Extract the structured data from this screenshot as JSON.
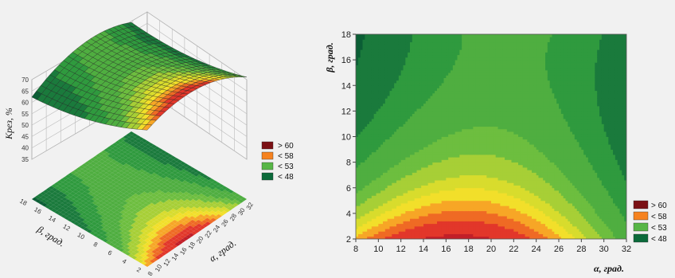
{
  "legend": [
    {
      "label": "> 60",
      "color": "#7b1014"
    },
    {
      "label": "< 58",
      "color": "#f6821f"
    },
    {
      "label": "< 53",
      "color": "#57b646"
    },
    {
      "label": "< 48",
      "color": "#0b6a3a"
    }
  ],
  "chart_data": [
    {
      "type": "surface",
      "xlabel": "α, град.",
      "ylabel": "β, град.",
      "zlabel": "Kрез, %",
      "x_ticks": [
        "8",
        "10",
        "12",
        "14",
        "16",
        "18",
        "20",
        "22",
        "24",
        "26",
        "28",
        "30",
        "32"
      ],
      "y_ticks": [
        "2",
        "4",
        "6",
        "8",
        "10",
        "12",
        "14",
        "16",
        "18"
      ],
      "z_ticks": [
        "35",
        "40",
        "45",
        "50",
        "55",
        "60",
        "65",
        "70"
      ],
      "xlim": [
        8,
        32
      ],
      "ylim": [
        2,
        18
      ],
      "zlim": [
        35,
        70
      ],
      "grid": true
    },
    {
      "type": "contour",
      "xlabel": "α, град.",
      "ylabel": "β, град.",
      "x_ticks": [
        "8",
        "10",
        "12",
        "14",
        "16",
        "18",
        "20",
        "22",
        "24",
        "26",
        "28",
        "30",
        "32"
      ],
      "y_ticks": [
        "2",
        "4",
        "6",
        "8",
        "10",
        "12",
        "14",
        "16",
        "18"
      ],
      "xlim": [
        8,
        32
      ],
      "ylim": [
        2,
        18
      ],
      "legend_position": "right"
    }
  ]
}
